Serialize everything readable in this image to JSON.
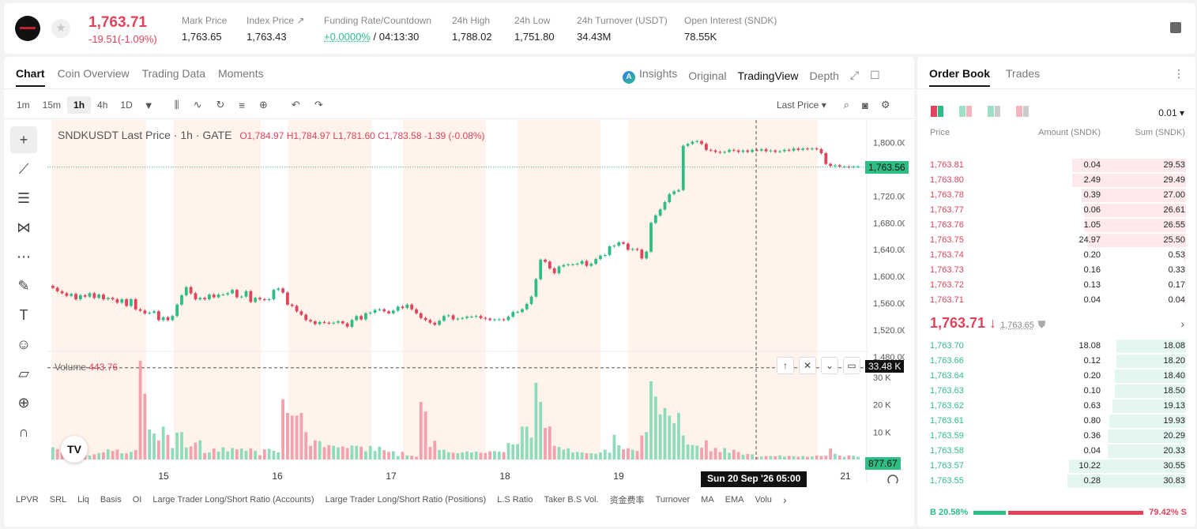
{
  "header": {
    "last_price": "1,763.71",
    "change": "-19.51(-1.09%)",
    "stats": [
      {
        "label": "Mark Price",
        "value": "1,763.65"
      },
      {
        "label": "Index Price ↗",
        "value": "1,763.43"
      },
      {
        "label": "Funding Rate/Countdown",
        "value_green": "+0.0000%",
        "value": " / 04:13:30"
      },
      {
        "label": "24h High",
        "value": "1,788.02"
      },
      {
        "label": "24h Low",
        "value": "1,751.80"
      },
      {
        "label": "24h Turnover (USDT)",
        "value": "34.43M"
      },
      {
        "label": "Open Interest (SNDK)",
        "value": "78.55K"
      }
    ]
  },
  "tabs": {
    "chart": "Chart",
    "coin_overview": "Coin Overview",
    "trading_data": "Trading Data",
    "moments": "Moments"
  },
  "view_tabs": {
    "insights": "Insights",
    "original": "Original",
    "tradingview": "TradingView",
    "depth": "Depth"
  },
  "timeframes": [
    "1m",
    "15m",
    "1h",
    "4h",
    "1D"
  ],
  "price_type": "Last Price ▾",
  "chart_info": {
    "name": "SNDKUSDT Last Price · 1h · GATE",
    "ohlc": "O1,784.97  H1,784.97  L1,781.60  C1,783.58  -1.39 (-0.08%)",
    "volume_label": "Volume",
    "volume_value": "443.76",
    "current_price_tag": "1,763.56",
    "volume_cursor_tag": "33.48 K",
    "volume_last_tag": "877.67",
    "date_tag": "Sun 20 Sep '26   05:00"
  },
  "chart_data": {
    "type": "candlestick",
    "x_ticks": [
      "15",
      "16",
      "17",
      "18",
      "19",
      "21"
    ],
    "price_ticks": [
      "1,800.00",
      "1,760.00",
      "1,720.00",
      "1,680.00",
      "1,640.00",
      "1,600.00",
      "1,560.00",
      "1,520.00",
      "1,480.00"
    ],
    "volume_ticks": [
      "30 K",
      "20 K",
      "10 K"
    ],
    "ylim": [
      1480,
      1810
    ],
    "vol_ylim": [
      0,
      36000
    ],
    "closes": [
      1583,
      1578,
      1575,
      1571,
      1574,
      1566,
      1572,
      1570,
      1575,
      1568,
      1573,
      1566,
      1568,
      1566,
      1561,
      1566,
      1556,
      1566,
      1551,
      1549,
      1545,
      1546,
      1548,
      1535,
      1539,
      1535,
      1541,
      1558,
      1572,
      1584,
      1575,
      1566,
      1568,
      1566,
      1573,
      1569,
      1573,
      1573,
      1575,
      1580,
      1569,
      1570,
      1578,
      1562,
      1568,
      1566,
      1565,
      1566,
      1580,
      1582,
      1576,
      1558,
      1556,
      1548,
      1543,
      1535,
      1533,
      1529,
      1532,
      1531,
      1530,
      1531,
      1533,
      1530,
      1525,
      1535,
      1541,
      1536,
      1545,
      1546,
      1550,
      1551,
      1548,
      1545,
      1549,
      1555,
      1553,
      1558,
      1551,
      1545,
      1538,
      1535,
      1531,
      1528,
      1534,
      1541,
      1542,
      1536,
      1537,
      1538,
      1540,
      1540,
      1541,
      1538,
      1537,
      1535,
      1536,
      1536,
      1535,
      1540,
      1547,
      1547,
      1551,
      1559,
      1570,
      1596,
      1625,
      1622,
      1612,
      1605,
      1615,
      1617,
      1618,
      1618,
      1619,
      1623,
      1616,
      1619,
      1626,
      1631,
      1632,
      1645,
      1646,
      1651,
      1649,
      1640,
      1641,
      1640,
      1627,
      1637,
      1680,
      1691,
      1700,
      1711,
      1723,
      1727,
      1729,
      1795,
      1798,
      1801,
      1802,
      1798,
      1789,
      1788,
      1786,
      1785,
      1786,
      1789,
      1788,
      1786,
      1788,
      1786,
      1789,
      1788,
      1790,
      1787,
      1788,
      1786,
      1787,
      1789,
      1788,
      1791,
      1789,
      1791,
      1790,
      1791,
      1790,
      1784,
      1768,
      1765,
      1766,
      1764,
      1764,
      1763,
      1764,
      1764
    ],
    "volumes": [
      4500,
      3800,
      2500,
      4000,
      2800,
      2200,
      1900,
      3200,
      1500,
      1900,
      2400,
      2600,
      3700,
      3100,
      3600,
      2300,
      2200,
      2800,
      3400,
      36000,
      24000,
      11000,
      9500,
      7000,
      12000,
      9000,
      4200,
      9800,
      10000,
      4400,
      4800,
      6200,
      7000,
      2400,
      2600,
      4000,
      2900,
      4500,
      3000,
      4200,
      3700,
      4000,
      3200,
      4100,
      3200,
      1600,
      3700,
      3900,
      3200,
      2600,
      22000,
      17000,
      16000,
      16000,
      17000,
      10000,
      5000,
      7000,
      6700,
      4500,
      5200,
      5000,
      4400,
      4800,
      4200,
      5100,
      5000,
      4700,
      3000,
      5000,
      3100,
      4700,
      3400,
      2800,
      3000,
      1300,
      2800,
      1500,
      1400,
      1000,
      21000,
      17500,
      4600,
      6800,
      3500,
      3600,
      2700,
      2500,
      2300,
      2600,
      3000,
      2600,
      2900,
      2500,
      2400,
      3000,
      3100,
      2900,
      2700,
      6000,
      5500,
      5600,
      12000,
      12000,
      8000,
      28000,
      21000,
      11500,
      12000,
      5000,
      4600,
      3600,
      4100,
      2600,
      2800,
      2600,
      2300,
      2300,
      2100,
      2600,
      3600,
      2500,
      9000,
      5200,
      3700,
      4100,
      3600,
      3100,
      8800,
      10000,
      28500,
      23000,
      16500,
      18800,
      16000,
      13300,
      17000,
      8800,
      5500,
      5300,
      5100,
      4300,
      7000,
      3000,
      4200,
      2700,
      4200,
      2500,
      3600,
      2700,
      1800,
      2000,
      1900,
      1000,
      1100,
      1300,
      1300,
      1200,
      1500,
      1100,
      1300,
      1200,
      1000,
      1300,
      1000,
      1100,
      1500,
      1300,
      1400,
      4000,
      2100,
      1500,
      1000,
      1500,
      1400,
      1000
    ]
  },
  "indicators": [
    "LPVR",
    "SRL",
    "Liq",
    "Basis",
    "OI",
    "Large Trader Long/Short Ratio (Accounts)",
    "Large Trader Long/Short Ratio (Positions)",
    "L.S Ratio",
    "Taker B.S Vol.",
    "资金费率",
    "Turnover",
    "MA",
    "EMA",
    "Volu"
  ],
  "orderbook": {
    "tabs": {
      "order_book": "Order Book",
      "trades": "Trades"
    },
    "tick": "0.01 ▾",
    "headers": {
      "price": "Price",
      "amount": "Amount (SNDK)",
      "sum": "Sum (SNDK)"
    },
    "asks": [
      {
        "p": "1,763.81",
        "a": "0.04",
        "s": "29.53",
        "d": 0.96
      },
      {
        "p": "1,763.80",
        "a": "2.49",
        "s": "29.49",
        "d": 0.96
      },
      {
        "p": "1,763.78",
        "a": "0.39",
        "s": "27.00",
        "d": 0.88
      },
      {
        "p": "1,763.77",
        "a": "0.06",
        "s": "26.61",
        "d": 0.86
      },
      {
        "p": "1,763.76",
        "a": "1.05",
        "s": "26.55",
        "d": 0.86
      },
      {
        "p": "1,763.75",
        "a": "24.97",
        "s": "25.50",
        "d": 0.83
      },
      {
        "p": "1,763.74",
        "a": "0.20",
        "s": "0.53",
        "d": 0.02
      },
      {
        "p": "1,763.73",
        "a": "0.16",
        "s": "0.33",
        "d": 0.01
      },
      {
        "p": "1,763.72",
        "a": "0.13",
        "s": "0.17",
        "d": 0.005
      },
      {
        "p": "1,763.71",
        "a": "0.04",
        "s": "0.04",
        "d": 0.002
      }
    ],
    "mid_price": "1,763.71 ↓",
    "mark_price": "1,763.65",
    "bids": [
      {
        "p": "1,763.70",
        "a": "18.08",
        "s": "18.08",
        "d": 0.59
      },
      {
        "p": "1,763.66",
        "a": "0.12",
        "s": "18.20",
        "d": 0.59
      },
      {
        "p": "1,763.64",
        "a": "0.20",
        "s": "18.40",
        "d": 0.6
      },
      {
        "p": "1,763.63",
        "a": "0.10",
        "s": "18.50",
        "d": 0.6
      },
      {
        "p": "1,763.62",
        "a": "0.63",
        "s": "19.13",
        "d": 0.62
      },
      {
        "p": "1,763.61",
        "a": "0.80",
        "s": "19.93",
        "d": 0.65
      },
      {
        "p": "1,763.59",
        "a": "0.36",
        "s": "20.29",
        "d": 0.66
      },
      {
        "p": "1,763.58",
        "a": "0.04",
        "s": "20.33",
        "d": 0.66
      },
      {
        "p": "1,763.57",
        "a": "10.22",
        "s": "30.55",
        "d": 0.99
      },
      {
        "p": "1,763.55",
        "a": "0.28",
        "s": "30.83",
        "d": 1.0
      }
    ],
    "buy_ratio": "B 20.58%",
    "sell_ratio": "79.42% S",
    "buy_fraction": 0.2058
  },
  "colors": {
    "up": "#2ebd85",
    "down": "#e0435a",
    "up_vol": "#8fdcbc",
    "down_vol": "#f2a1ad",
    "session": "#fff3ec"
  }
}
